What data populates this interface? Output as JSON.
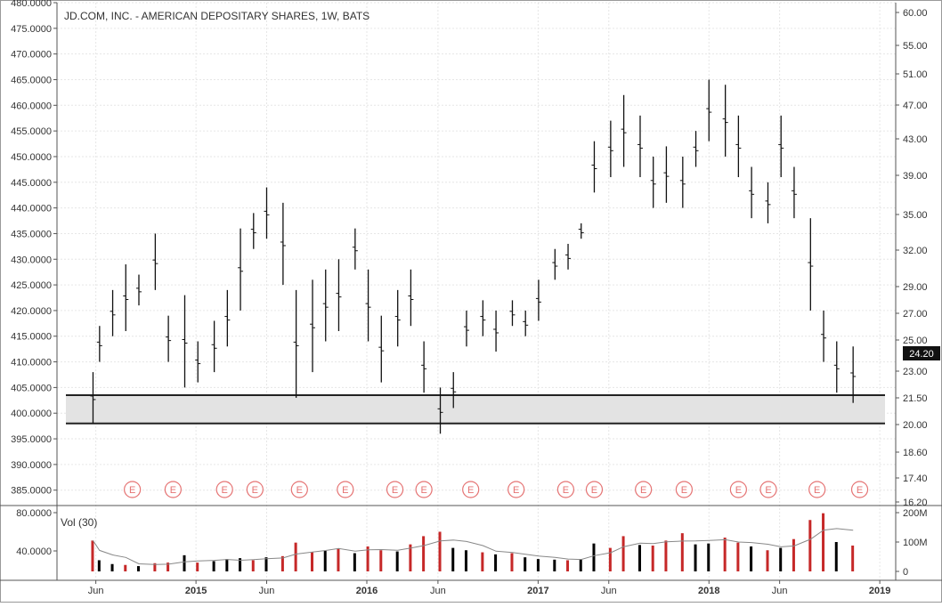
{
  "chart_data": [
    {
      "type": "ohlc",
      "title": "JD.COM, INC. - AMERICAN DEPOSITARY SHARES, 1W, BATS",
      "x_tick_labels": [
        "Jun",
        "2015",
        "Jun",
        "2016",
        "Jun",
        "2017",
        "Jun",
        "2018",
        "Jun",
        "2019"
      ],
      "x_tick_dates": [
        "2014-06-01",
        "2015-01-01",
        "2015-06-01",
        "2016-01-01",
        "2016-06-01",
        "2017-01-01",
        "2017-06-01",
        "2018-01-01",
        "2018-06-01",
        "2019-01-01"
      ],
      "left_axis": {
        "tick_labels": [
          "480.0000",
          "475.0000",
          "470.0000",
          "465.0000",
          "460.0000",
          "455.0000",
          "450.0000",
          "445.0000",
          "440.0000",
          "435.0000",
          "430.0000",
          "425.0000",
          "420.0000",
          "415.0000",
          "410.0000",
          "405.0000",
          "400.0000",
          "395.0000",
          "390.0000",
          "385.0000"
        ],
        "ylim": [
          382,
          480
        ]
      },
      "right_axis": {
        "tick_labels": [
          "60.00",
          "55.00",
          "51.00",
          "47.00",
          "43.00",
          "39.00",
          "35.00",
          "32.00",
          "29.00",
          "27.00",
          "25.00",
          "23.00",
          "21.50",
          "20.00",
          "18.60",
          "17.40",
          "16.20"
        ],
        "last_price_label": "24.20"
      },
      "support_zone": {
        "upper": 403.5,
        "lower": 398.0
      },
      "earnings_marker_label": "E",
      "earnings_dates": [
        "2014-08-18",
        "2014-11-13",
        "2015-03-03",
        "2015-05-07",
        "2015-08-10",
        "2015-11-16",
        "2016-03-01",
        "2016-05-02",
        "2016-08-10",
        "2016-11-15",
        "2017-03-01",
        "2017-05-01",
        "2017-08-14",
        "2017-11-09",
        "2018-03-05",
        "2018-05-08",
        "2018-08-20",
        "2018-11-19"
      ],
      "series": [
        {
          "name": "weekly price",
          "values": [
            {
              "date": "2014-05-26",
              "low": 398,
              "high": 408
            },
            {
              "date": "2014-06-09",
              "low": 410,
              "high": 417
            },
            {
              "date": "2014-07-07",
              "low": 415,
              "high": 424
            },
            {
              "date": "2014-08-04",
              "low": 416,
              "high": 429
            },
            {
              "date": "2014-09-01",
              "low": 421,
              "high": 427
            },
            {
              "date": "2014-10-06",
              "low": 424,
              "high": 435
            },
            {
              "date": "2014-11-03",
              "low": 410,
              "high": 419
            },
            {
              "date": "2014-12-08",
              "low": 405,
              "high": 423
            },
            {
              "date": "2015-01-05",
              "low": 406,
              "high": 414
            },
            {
              "date": "2015-02-09",
              "low": 408,
              "high": 418
            },
            {
              "date": "2015-03-09",
              "low": 413,
              "high": 424
            },
            {
              "date": "2015-04-06",
              "low": 420,
              "high": 436
            },
            {
              "date": "2015-05-04",
              "low": 432,
              "high": 439
            },
            {
              "date": "2015-06-01",
              "low": 434,
              "high": 444
            },
            {
              "date": "2015-07-06",
              "low": 425,
              "high": 441
            },
            {
              "date": "2015-08-03",
              "low": 403,
              "high": 424
            },
            {
              "date": "2015-09-07",
              "low": 408,
              "high": 426
            },
            {
              "date": "2015-10-05",
              "low": 414,
              "high": 428
            },
            {
              "date": "2015-11-02",
              "low": 416,
              "high": 430
            },
            {
              "date": "2015-12-07",
              "low": 428,
              "high": 436
            },
            {
              "date": "2016-01-04",
              "low": 414,
              "high": 428
            },
            {
              "date": "2016-02-01",
              "low": 406,
              "high": 419
            },
            {
              "date": "2016-03-07",
              "low": 413,
              "high": 424
            },
            {
              "date": "2016-04-04",
              "low": 417,
              "high": 428
            },
            {
              "date": "2016-05-02",
              "low": 404,
              "high": 414
            },
            {
              "date": "2016-06-06",
              "low": 396,
              "high": 405
            },
            {
              "date": "2016-07-04",
              "low": 401,
              "high": 408
            },
            {
              "date": "2016-08-01",
              "low": 413,
              "high": 420
            },
            {
              "date": "2016-09-05",
              "low": 415,
              "high": 422
            },
            {
              "date": "2016-10-03",
              "low": 412,
              "high": 420
            },
            {
              "date": "2016-11-07",
              "low": 417,
              "high": 422
            },
            {
              "date": "2016-12-05",
              "low": 415,
              "high": 420
            },
            {
              "date": "2017-01-02",
              "low": 418,
              "high": 426
            },
            {
              "date": "2017-02-06",
              "low": 426,
              "high": 432
            },
            {
              "date": "2017-03-06",
              "low": 428,
              "high": 433
            },
            {
              "date": "2017-04-03",
              "low": 434,
              "high": 437
            },
            {
              "date": "2017-05-01",
              "low": 443,
              "high": 453
            },
            {
              "date": "2017-06-05",
              "low": 446,
              "high": 457
            },
            {
              "date": "2017-07-03",
              "low": 448,
              "high": 462
            },
            {
              "date": "2017-08-07",
              "low": 446,
              "high": 458
            },
            {
              "date": "2017-09-04",
              "low": 440,
              "high": 450
            },
            {
              "date": "2017-10-02",
              "low": 441,
              "high": 452
            },
            {
              "date": "2017-11-06",
              "low": 440,
              "high": 450
            },
            {
              "date": "2017-12-04",
              "low": 448,
              "high": 455
            },
            {
              "date": "2018-01-01",
              "low": 453,
              "high": 465
            },
            {
              "date": "2018-02-05",
              "low": 450,
              "high": 464
            },
            {
              "date": "2018-03-05",
              "low": 446,
              "high": 458
            },
            {
              "date": "2018-04-02",
              "low": 438,
              "high": 448
            },
            {
              "date": "2018-05-07",
              "low": 437,
              "high": 445
            },
            {
              "date": "2018-06-04",
              "low": 446,
              "high": 458
            },
            {
              "date": "2018-07-02",
              "low": 438,
              "high": 448
            },
            {
              "date": "2018-08-06",
              "low": 420,
              "high": 438
            },
            {
              "date": "2018-09-03",
              "low": 410,
              "high": 420
            },
            {
              "date": "2018-10-01",
              "low": 404,
              "high": 414
            },
            {
              "date": "2018-11-05",
              "low": 402,
              "high": 413
            }
          ]
        }
      ]
    },
    {
      "type": "bar",
      "legend": "Vol (30)",
      "left_axis": {
        "tick_labels": [
          "80.0000",
          "40.0000"
        ]
      },
      "right_axis": {
        "tick_labels": [
          "200M",
          "100M",
          "0"
        ],
        "ylim": [
          0,
          200
        ]
      },
      "ylabel_units": "M",
      "colors": {
        "up": "#000000",
        "down": "#c62828",
        "average_line": "#888888"
      },
      "series": [
        {
          "name": "Vol",
          "values": [
            {
              "date": "2014-05-26",
              "volume": 105,
              "direction": "down"
            },
            {
              "date": "2014-06-09",
              "volume": 38,
              "direction": "up"
            },
            {
              "date": "2014-07-07",
              "volume": 25,
              "direction": "up"
            },
            {
              "date": "2014-08-04",
              "volume": 22,
              "direction": "down"
            },
            {
              "date": "2014-09-01",
              "volume": 18,
              "direction": "up"
            },
            {
              "date": "2014-10-06",
              "volume": 28,
              "direction": "down"
            },
            {
              "date": "2014-11-03",
              "volume": 30,
              "direction": "down"
            },
            {
              "date": "2014-12-08",
              "volume": 55,
              "direction": "up"
            },
            {
              "date": "2015-01-05",
              "volume": 30,
              "direction": "down"
            },
            {
              "date": "2015-02-09",
              "volume": 35,
              "direction": "up"
            },
            {
              "date": "2015-03-09",
              "volume": 42,
              "direction": "up"
            },
            {
              "date": "2015-04-06",
              "volume": 45,
              "direction": "up"
            },
            {
              "date": "2015-05-04",
              "volume": 38,
              "direction": "down"
            },
            {
              "date": "2015-06-01",
              "volume": 48,
              "direction": "up"
            },
            {
              "date": "2015-07-06",
              "volume": 52,
              "direction": "down"
            },
            {
              "date": "2015-08-03",
              "volume": 98,
              "direction": "down"
            },
            {
              "date": "2015-09-07",
              "volume": 65,
              "direction": "down"
            },
            {
              "date": "2015-10-05",
              "volume": 70,
              "direction": "up"
            },
            {
              "date": "2015-11-02",
              "volume": 78,
              "direction": "down"
            },
            {
              "date": "2015-12-07",
              "volume": 62,
              "direction": "up"
            },
            {
              "date": "2016-01-04",
              "volume": 85,
              "direction": "down"
            },
            {
              "date": "2016-02-01",
              "volume": 72,
              "direction": "down"
            },
            {
              "date": "2016-03-07",
              "volume": 68,
              "direction": "up"
            },
            {
              "date": "2016-04-04",
              "volume": 92,
              "direction": "down"
            },
            {
              "date": "2016-05-02",
              "volume": 120,
              "direction": "down"
            },
            {
              "date": "2016-06-06",
              "volume": 135,
              "direction": "down"
            },
            {
              "date": "2016-07-04",
              "volume": 80,
              "direction": "up"
            },
            {
              "date": "2016-08-01",
              "volume": 72,
              "direction": "up"
            },
            {
              "date": "2016-09-05",
              "volume": 65,
              "direction": "down"
            },
            {
              "date": "2016-10-03",
              "volume": 58,
              "direction": "up"
            },
            {
              "date": "2016-11-07",
              "volume": 62,
              "direction": "down"
            },
            {
              "date": "2016-12-05",
              "volume": 48,
              "direction": "up"
            },
            {
              "date": "2017-01-02",
              "volume": 42,
              "direction": "up"
            },
            {
              "date": "2017-02-06",
              "volume": 40,
              "direction": "up"
            },
            {
              "date": "2017-03-06",
              "volume": 38,
              "direction": "down"
            },
            {
              "date": "2017-04-03",
              "volume": 42,
              "direction": "up"
            },
            {
              "date": "2017-05-01",
              "volume": 95,
              "direction": "up"
            },
            {
              "date": "2017-06-05",
              "volume": 80,
              "direction": "down"
            },
            {
              "date": "2017-07-03",
              "volume": 120,
              "direction": "down"
            },
            {
              "date": "2017-08-07",
              "volume": 90,
              "direction": "up"
            },
            {
              "date": "2017-09-04",
              "volume": 88,
              "direction": "down"
            },
            {
              "date": "2017-10-02",
              "volume": 105,
              "direction": "down"
            },
            {
              "date": "2017-11-06",
              "volume": 130,
              "direction": "down"
            },
            {
              "date": "2017-12-04",
              "volume": 92,
              "direction": "up"
            },
            {
              "date": "2018-01-01",
              "volume": 95,
              "direction": "up"
            },
            {
              "date": "2018-02-05",
              "volume": 115,
              "direction": "down"
            },
            {
              "date": "2018-03-05",
              "volume": 98,
              "direction": "down"
            },
            {
              "date": "2018-04-02",
              "volume": 85,
              "direction": "up"
            },
            {
              "date": "2018-05-07",
              "volume": 72,
              "direction": "down"
            },
            {
              "date": "2018-06-04",
              "volume": 80,
              "direction": "up"
            },
            {
              "date": "2018-07-02",
              "volume": 110,
              "direction": "down"
            },
            {
              "date": "2018-08-06",
              "volume": 175,
              "direction": "down"
            },
            {
              "date": "2018-09-03",
              "volume": 198,
              "direction": "down"
            },
            {
              "date": "2018-10-01",
              "volume": 100,
              "direction": "up"
            },
            {
              "date": "2018-11-05",
              "volume": 88,
              "direction": "down"
            }
          ]
        }
      ]
    }
  ]
}
